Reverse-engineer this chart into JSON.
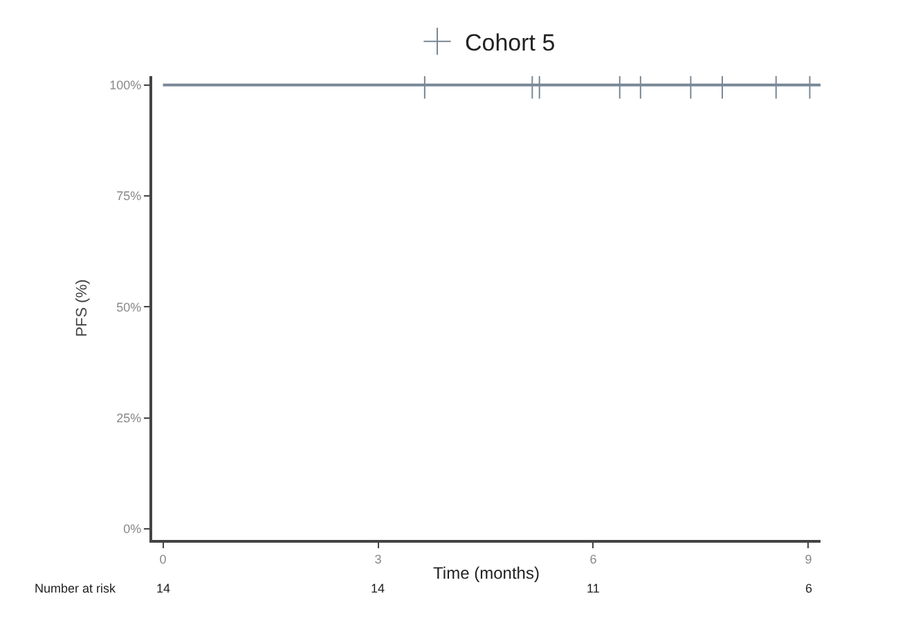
{
  "chart_data": {
    "type": "step",
    "xlabel": "Time (months)",
    "ylabel": "PFS (%)",
    "xlim": [
      -0.15,
      9.17
    ],
    "xticks": [
      0,
      3,
      6,
      9
    ],
    "ylim": [
      -2.5,
      102
    ],
    "yticks": [
      {
        "value": 0,
        "label": "0%"
      },
      {
        "value": 25,
        "label": "25%"
      },
      {
        "value": 50,
        "label": "50%"
      },
      {
        "value": 75,
        "label": "75%"
      },
      {
        "value": 100,
        "label": "100%"
      }
    ],
    "series": [
      {
        "color": "#7a8896",
        "x": [
          0,
          9.17
        ],
        "values": [
          100,
          100
        ],
        "marker": "none"
      },
      {
        "type": "scatter",
        "name": "Cohort 5",
        "color": "#7a8896",
        "x": [
          3.65,
          5.15,
          5.25,
          6.37,
          6.66,
          7.36,
          7.8,
          8.55,
          9.02
        ],
        "values": [
          100,
          100,
          100,
          100,
          100,
          100,
          100,
          100,
          100
        ],
        "marker": "cross"
      }
    ],
    "annotations": [
      "Number at risk",
      "14",
      "14",
      "11",
      "6"
    ],
    "legend": "top"
  }
}
